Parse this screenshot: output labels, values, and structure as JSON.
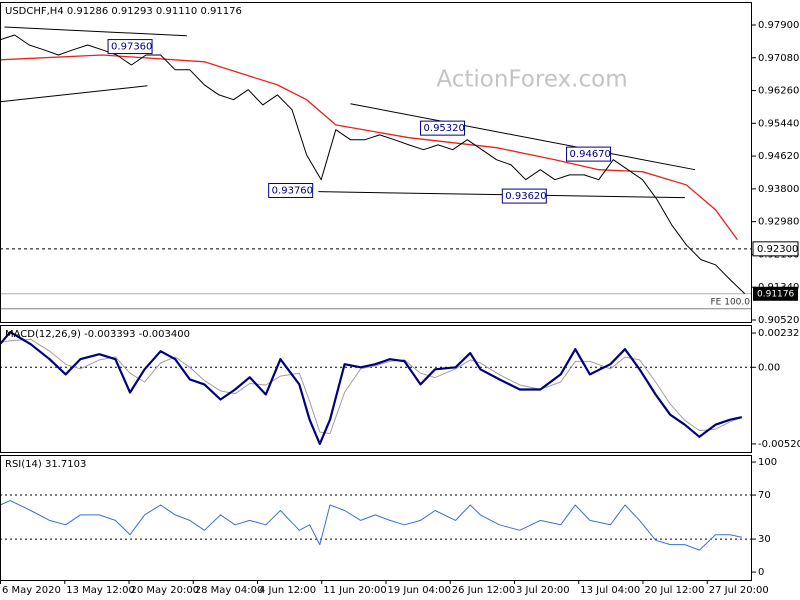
{
  "chart_data": [
    {
      "type": "price",
      "title": "USDCHF,H4  0.91286 0.91293 0.91110 0.91176",
      "watermark": "ActionForex.com",
      "color": "#000000",
      "x": [
        0,
        10,
        20,
        30,
        40,
        50,
        60,
        70,
        80,
        90,
        100,
        110,
        120,
        130,
        140,
        150,
        160,
        170,
        180,
        190,
        200,
        210,
        220,
        230,
        240,
        250,
        260,
        270,
        280,
        290,
        300,
        310,
        320,
        330,
        340,
        350,
        360,
        370,
        380,
        390,
        400,
        410,
        420,
        430,
        440,
        450,
        460,
        470,
        480,
        490,
        500,
        510
      ],
      "values": [
        0.9753,
        0.9765,
        0.974,
        0.9728,
        0.9715,
        0.9728,
        0.974,
        0.9728,
        0.9715,
        0.969,
        0.9715,
        0.9715,
        0.9678,
        0.9678,
        0.964,
        0.9615,
        0.9603,
        0.9628,
        0.959,
        0.9615,
        0.9578,
        0.9465,
        0.9403,
        0.9528,
        0.9503,
        0.9503,
        0.9515,
        0.9503,
        0.949,
        0.9478,
        0.949,
        0.9478,
        0.9503,
        0.9478,
        0.9453,
        0.944,
        0.9403,
        0.9428,
        0.9403,
        0.9415,
        0.9415,
        0.9403,
        0.9453,
        0.9428,
        0.9403,
        0.9353,
        0.929,
        0.924,
        0.9203,
        0.919,
        0.9153,
        0.9118
      ],
      "moving_average": {
        "color": "#e8231c",
        "x": [
          0,
          70,
          140,
          190,
          210,
          230,
          280,
          340,
          380,
          410,
          440,
          470,
          490,
          505
        ],
        "values": [
          0.9703,
          0.9715,
          0.9698,
          0.964,
          0.9603,
          0.954,
          0.9508,
          0.9483,
          0.9453,
          0.9428,
          0.9423,
          0.939,
          0.9328,
          0.9253
        ]
      },
      "trendlines": [
        {
          "x": [
            0,
            101
          ],
          "values": [
            0.9598,
            0.9638
          ]
        },
        {
          "x": [
            3,
            128
          ],
          "values": [
            0.9785,
            0.9763
          ]
        },
        {
          "x": [
            240,
            476
          ],
          "values": [
            0.9593,
            0.9428
          ]
        },
        {
          "x": [
            218,
            469
          ],
          "values": [
            0.9373,
            0.9358
          ]
        }
      ],
      "annotations": [
        {
          "label": "0.97360",
          "value": 0.9736,
          "x": 74
        },
        {
          "label": "0.95320",
          "value": 0.9532,
          "x": 288
        },
        {
          "label": "0.94670",
          "value": 0.9467,
          "x": 388
        },
        {
          "label": "0.93760",
          "value": 0.9376,
          "x": 184
        },
        {
          "label": "0.93620",
          "value": 0.9362,
          "x": 344
        }
      ],
      "levels": [
        {
          "label": "0.92300",
          "value": 0.923
        }
      ],
      "last_price": {
        "label": "0.91176",
        "value": 0.91176
      },
      "fe": {
        "label": "FE 100.0",
        "value": 0.908
      },
      "xlim": [
        0,
        515
      ],
      "xticks": [
        {
          "value": 0,
          "label": "6 May 2020"
        },
        {
          "value": 44,
          "label": "13 May 12:00"
        },
        {
          "value": 88,
          "label": "20 May 20:00"
        },
        {
          "value": 132,
          "label": "28 May 04:00"
        },
        {
          "value": 176,
          "label": "4 Jun 12:00"
        },
        {
          "value": 220,
          "label": "11 Jun 20:00"
        },
        {
          "value": 264,
          "label": "19 Jun 04:00"
        },
        {
          "value": 308,
          "label": "26 Jun 12:00"
        },
        {
          "value": 352,
          "label": "3 Jul 20:00"
        },
        {
          "value": 396,
          "label": "13 Jul 04:00"
        },
        {
          "value": 440,
          "label": "20 Jul 12:00"
        },
        {
          "value": 484,
          "label": "27 Jul 20:00"
        }
      ],
      "ylim": [
        0.9047,
        0.98475
      ],
      "yticks": [
        {
          "value": 0.979,
          "label": "0.97900"
        },
        {
          "value": 0.9708,
          "label": "0.97080"
        },
        {
          "value": 0.9626,
          "label": "0.96260"
        },
        {
          "value": 0.9544,
          "label": "0.95440"
        },
        {
          "value": 0.9462,
          "label": "0.94620"
        },
        {
          "value": 0.938,
          "label": "0.93800"
        },
        {
          "value": 0.9298,
          "label": "0.92980"
        },
        {
          "value": 0.9216,
          "label": "0.92160"
        },
        {
          "value": 0.9134,
          "label": "0.91340"
        },
        {
          "value": 0.9052,
          "label": "0.90520"
        }
      ]
    },
    {
      "type": "macd",
      "title": "MACD(12,26,9) -0.003393 -0.003400",
      "x": [
        0,
        7,
        21,
        34,
        45,
        55,
        68,
        79,
        89,
        99,
        110,
        120,
        130,
        140,
        151,
        161,
        171,
        182,
        192,
        205,
        212,
        219,
        226,
        236,
        247,
        257,
        267,
        277,
        288,
        298,
        312,
        322,
        329,
        342,
        356,
        370,
        384,
        394,
        404,
        418,
        428,
        438,
        449,
        459,
        469,
        479,
        490,
        500,
        508
      ],
      "series": [
        {
          "color": "#000080",
          "values": [
            0.00157,
            0.00239,
            0.00157,
            0.00055,
            -0.00048,
            0.00055,
            0.00089,
            0.00055,
            -0.00171,
            -0.00014,
            0.00109,
            0.00055,
            -0.00082,
            -0.00116,
            -0.00219,
            -0.00151,
            -0.00068,
            -0.00185,
            0.00055,
            -0.00116,
            -0.00356,
            -0.0052,
            -0.00356,
            0.00021,
            0,
            0.00021,
            0.00055,
            0.00041,
            -0.00116,
            -0.00014,
            0,
            0.00096,
            -0.00014,
            -0.00082,
            -0.00151,
            -0.00151,
            -0.00048,
            0.00123,
            -0.00048,
            0.00021,
            0.00123,
            -0.00014,
            -0.00185,
            -0.00322,
            -0.0039,
            -0.00472,
            -0.0039,
            -0.00356,
            -0.00339
          ]
        },
        {
          "color": "#a0a0a0",
          "values": [
            0.0017,
            0.0018,
            0.0019,
            0.0011,
            0.0002,
            -0.0001,
            0.0005,
            0.0007,
            -0.0004,
            -0.001,
            0.0003,
            0.0007,
            0.0,
            -0.0009,
            -0.0016,
            -0.0018,
            -0.0011,
            -0.0012,
            -0.0006,
            -0.0004,
            -0.0023,
            -0.0044,
            -0.0045,
            -0.0017,
            -0.0001,
            0.0001,
            0.0004,
            0.0005,
            -0.0004,
            -0.0007,
            -0.0001,
            0.0005,
            0.0003,
            -0.0005,
            -0.0012,
            -0.0015,
            -0.001,
            0.0004,
            0.0004,
            -0.0001,
            0.0007,
            0.0005,
            -0.001,
            -0.0025,
            -0.0036,
            -0.0043,
            -0.0042,
            -0.0037,
            -0.0034
          ]
        }
      ],
      "levels": [
        0
      ],
      "ylim": [
        -0.00575,
        0.00287
      ],
      "yticks": [
        0.002325,
        {
          "value": 0,
          "label": "0.00"
        },
        -0.005201
      ]
    },
    {
      "type": "rsi",
      "title": "RSI(14) 31.7103",
      "color": "#3a6fd8",
      "x": [
        0,
        7,
        21,
        34,
        45,
        55,
        68,
        79,
        89,
        99,
        110,
        120,
        130,
        140,
        151,
        161,
        171,
        182,
        192,
        205,
        212,
        219,
        226,
        236,
        247,
        257,
        267,
        277,
        288,
        298,
        312,
        322,
        329,
        342,
        356,
        370,
        384,
        394,
        404,
        418,
        428,
        438,
        449,
        459,
        469,
        479,
        490,
        500,
        508
      ],
      "values": [
        61,
        65,
        56,
        47,
        43,
        52,
        52,
        47,
        34,
        52,
        61,
        52,
        47,
        38,
        52,
        43,
        47,
        43,
        56,
        38,
        43,
        25,
        61,
        56,
        47,
        52,
        47,
        43,
        47,
        56,
        47,
        61,
        52,
        43,
        38,
        47,
        43,
        61,
        47,
        43,
        61,
        47,
        29,
        25,
        25,
        20,
        34,
        34,
        31.7
      ],
      "levels": [
        70,
        30
      ],
      "ylim": [
        -7.2,
        106.4
      ],
      "yticks": [
        100,
        70,
        30,
        0
      ]
    }
  ]
}
